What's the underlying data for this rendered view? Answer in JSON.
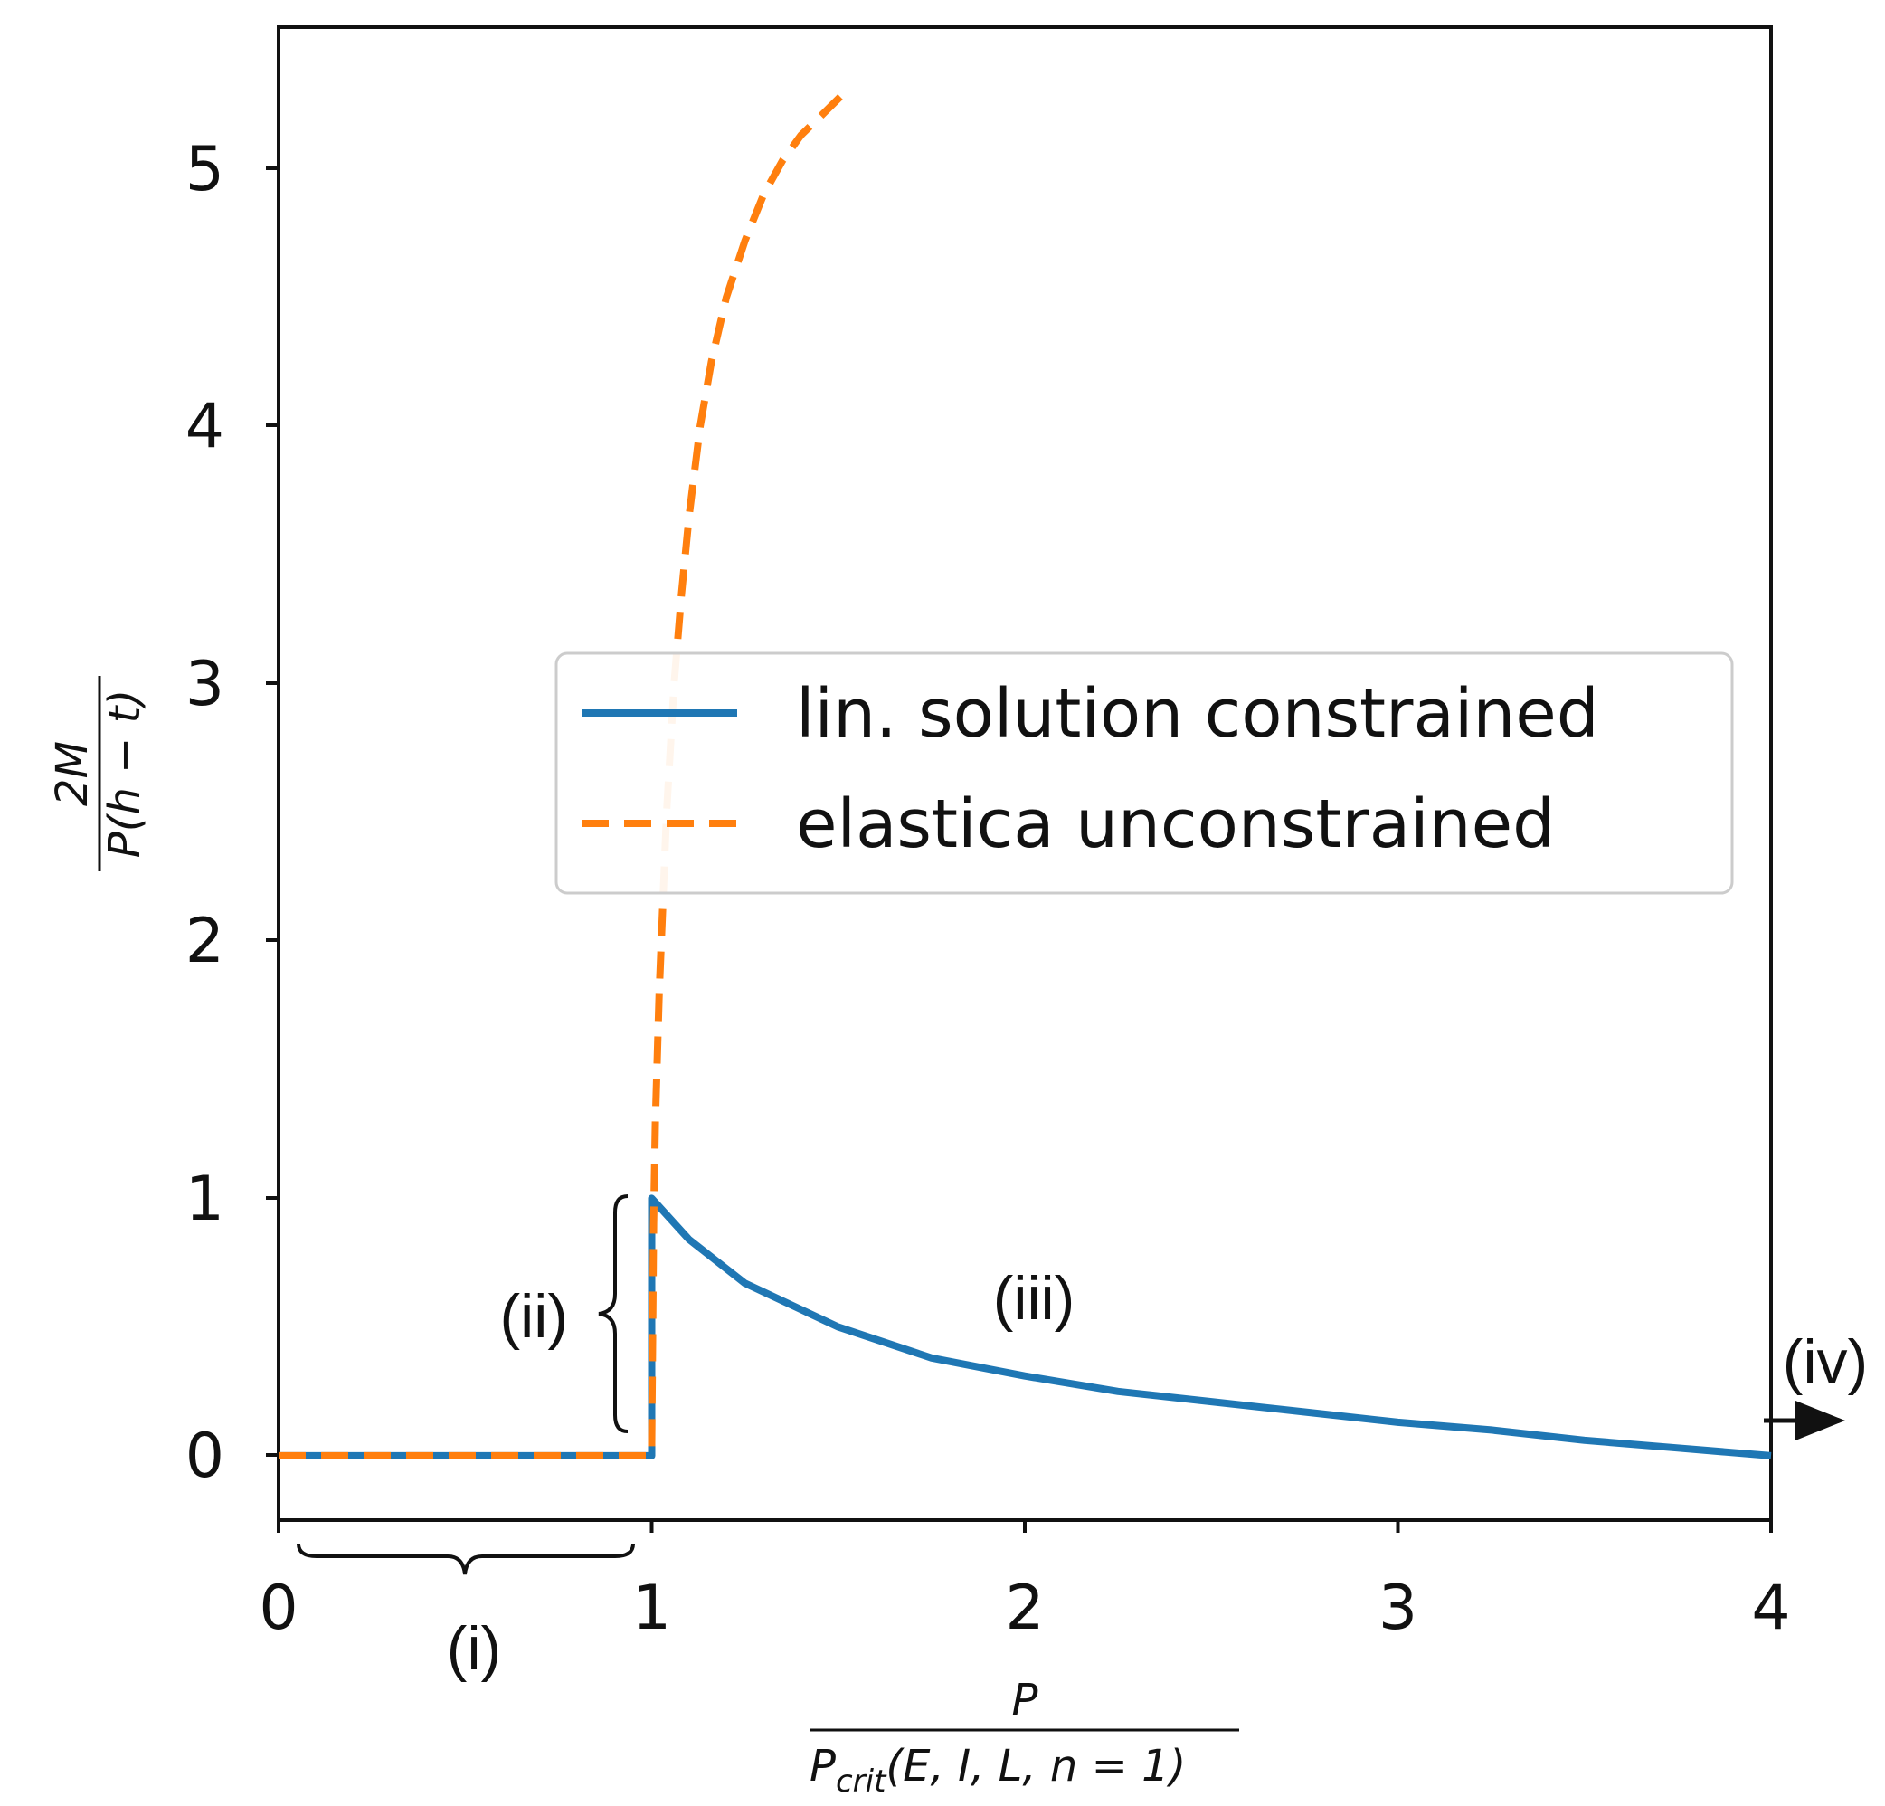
{
  "chart_data": {
    "type": "line",
    "xlim": [
      0,
      4
    ],
    "ylim": [
      -0.25,
      5.55
    ],
    "x_ticks": [
      "0",
      "1",
      "2",
      "3",
      "4"
    ],
    "y_ticks": [
      "0",
      "1",
      "2",
      "3",
      "4",
      "5"
    ],
    "grid": false,
    "legend_position": "center-right",
    "xlabel": {
      "numerator": "P",
      "denominator_main": "P",
      "denominator_sub": "crit",
      "denominator_args": "(E, I, L, n = 1)"
    },
    "ylabel": {
      "numerator": "2M",
      "denominator": "P(h − t)"
    },
    "series": [
      {
        "name": "lin. solution constrained",
        "color": "#1f77b4",
        "style": "solid",
        "x": [
          0,
          0.5,
          1.0,
          1.0,
          1.1,
          1.25,
          1.5,
          1.75,
          2.0,
          2.25,
          2.5,
          2.75,
          3.0,
          3.25,
          3.5,
          3.75,
          4.0
        ],
        "y": [
          0,
          0,
          0,
          1.0,
          0.84,
          0.67,
          0.5,
          0.38,
          0.31,
          0.25,
          0.21,
          0.17,
          0.13,
          0.1,
          0.06,
          0.03,
          0
        ]
      },
      {
        "name": "elastica unconstrained",
        "color": "#ff7f0e",
        "style": "dashed",
        "x": [
          0,
          0.5,
          1.0,
          1.0,
          1.005,
          1.01,
          1.02,
          1.04,
          1.06,
          1.08,
          1.1,
          1.13,
          1.16,
          1.2,
          1.25,
          1.3,
          1.35,
          1.4,
          1.45,
          1.52
        ],
        "y": [
          0,
          0,
          0,
          0.05,
          0.9,
          1.3,
          1.8,
          2.5,
          3.0,
          3.35,
          3.65,
          4.0,
          4.25,
          4.5,
          4.72,
          4.9,
          5.03,
          5.13,
          5.2,
          5.3
        ]
      }
    ],
    "annotations": [
      {
        "text": "(i)"
      },
      {
        "text": "(ii)"
      },
      {
        "text": "(iii)"
      },
      {
        "text": "(iv)"
      }
    ]
  }
}
